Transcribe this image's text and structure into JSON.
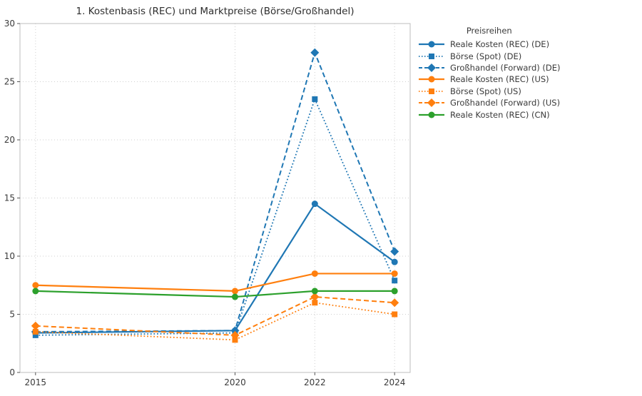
{
  "page": {
    "background": "#ffffff"
  },
  "chart_data": {
    "type": "line",
    "title": "1. Kostenbasis (REC) und Marktpreise (Börse/Großhandel)",
    "legend_title": "Preisreihen",
    "legend_position": "right-top",
    "grid": true,
    "x": [
      2015,
      2020,
      2022,
      2024
    ],
    "x_tick_labels": [
      "2015",
      "2020",
      "2022",
      "2024"
    ],
    "xlim": [
      2014.61,
      2024.39
    ],
    "yticks": [
      0,
      5,
      10,
      15,
      20,
      25,
      30
    ],
    "y_tick_labels": [
      "0",
      "5",
      "10",
      "15",
      "20",
      "25",
      "30"
    ],
    "ylim": [
      0,
      30
    ],
    "axis_color": "#bdbdbd",
    "grid_color": "#cfcfcf",
    "tick_label_color": "#3a3a3a",
    "series": [
      {
        "name": "Reale Kosten (REC) (DE)",
        "color": "#1f77b4",
        "line_style": "solid",
        "marker": "circle",
        "values": [
          3.4,
          3.6,
          14.5,
          9.5
        ]
      },
      {
        "name": "Börse (Spot) (DE)",
        "color": "#1f77b4",
        "line_style": "dotted",
        "marker": "square",
        "values": [
          3.2,
          3.4,
          23.5,
          7.9
        ]
      },
      {
        "name": "Großhandel (Forward) (DE)",
        "color": "#1f77b4",
        "line_style": "dashed",
        "marker": "diamond",
        "values": [
          3.5,
          3.6,
          27.5,
          10.4
        ]
      },
      {
        "name": "Reale Kosten (REC) (US)",
        "color": "#ff7f0e",
        "line_style": "solid",
        "marker": "circle",
        "values": [
          7.5,
          7.0,
          8.5,
          8.5
        ]
      },
      {
        "name": "Börse (Spot) (US)",
        "color": "#ff7f0e",
        "line_style": "dotted",
        "marker": "square",
        "values": [
          3.5,
          2.8,
          6.0,
          5.0
        ]
      },
      {
        "name": "Großhandel (Forward) (US)",
        "color": "#ff7f0e",
        "line_style": "dashed",
        "marker": "diamond",
        "values": [
          4.0,
          3.2,
          6.5,
          6.0
        ]
      },
      {
        "name": "Reale Kosten (REC) (CN)",
        "color": "#2ca02c",
        "line_style": "solid",
        "marker": "circle",
        "values": [
          7.0,
          6.5,
          7.0,
          7.0
        ]
      }
    ]
  }
}
